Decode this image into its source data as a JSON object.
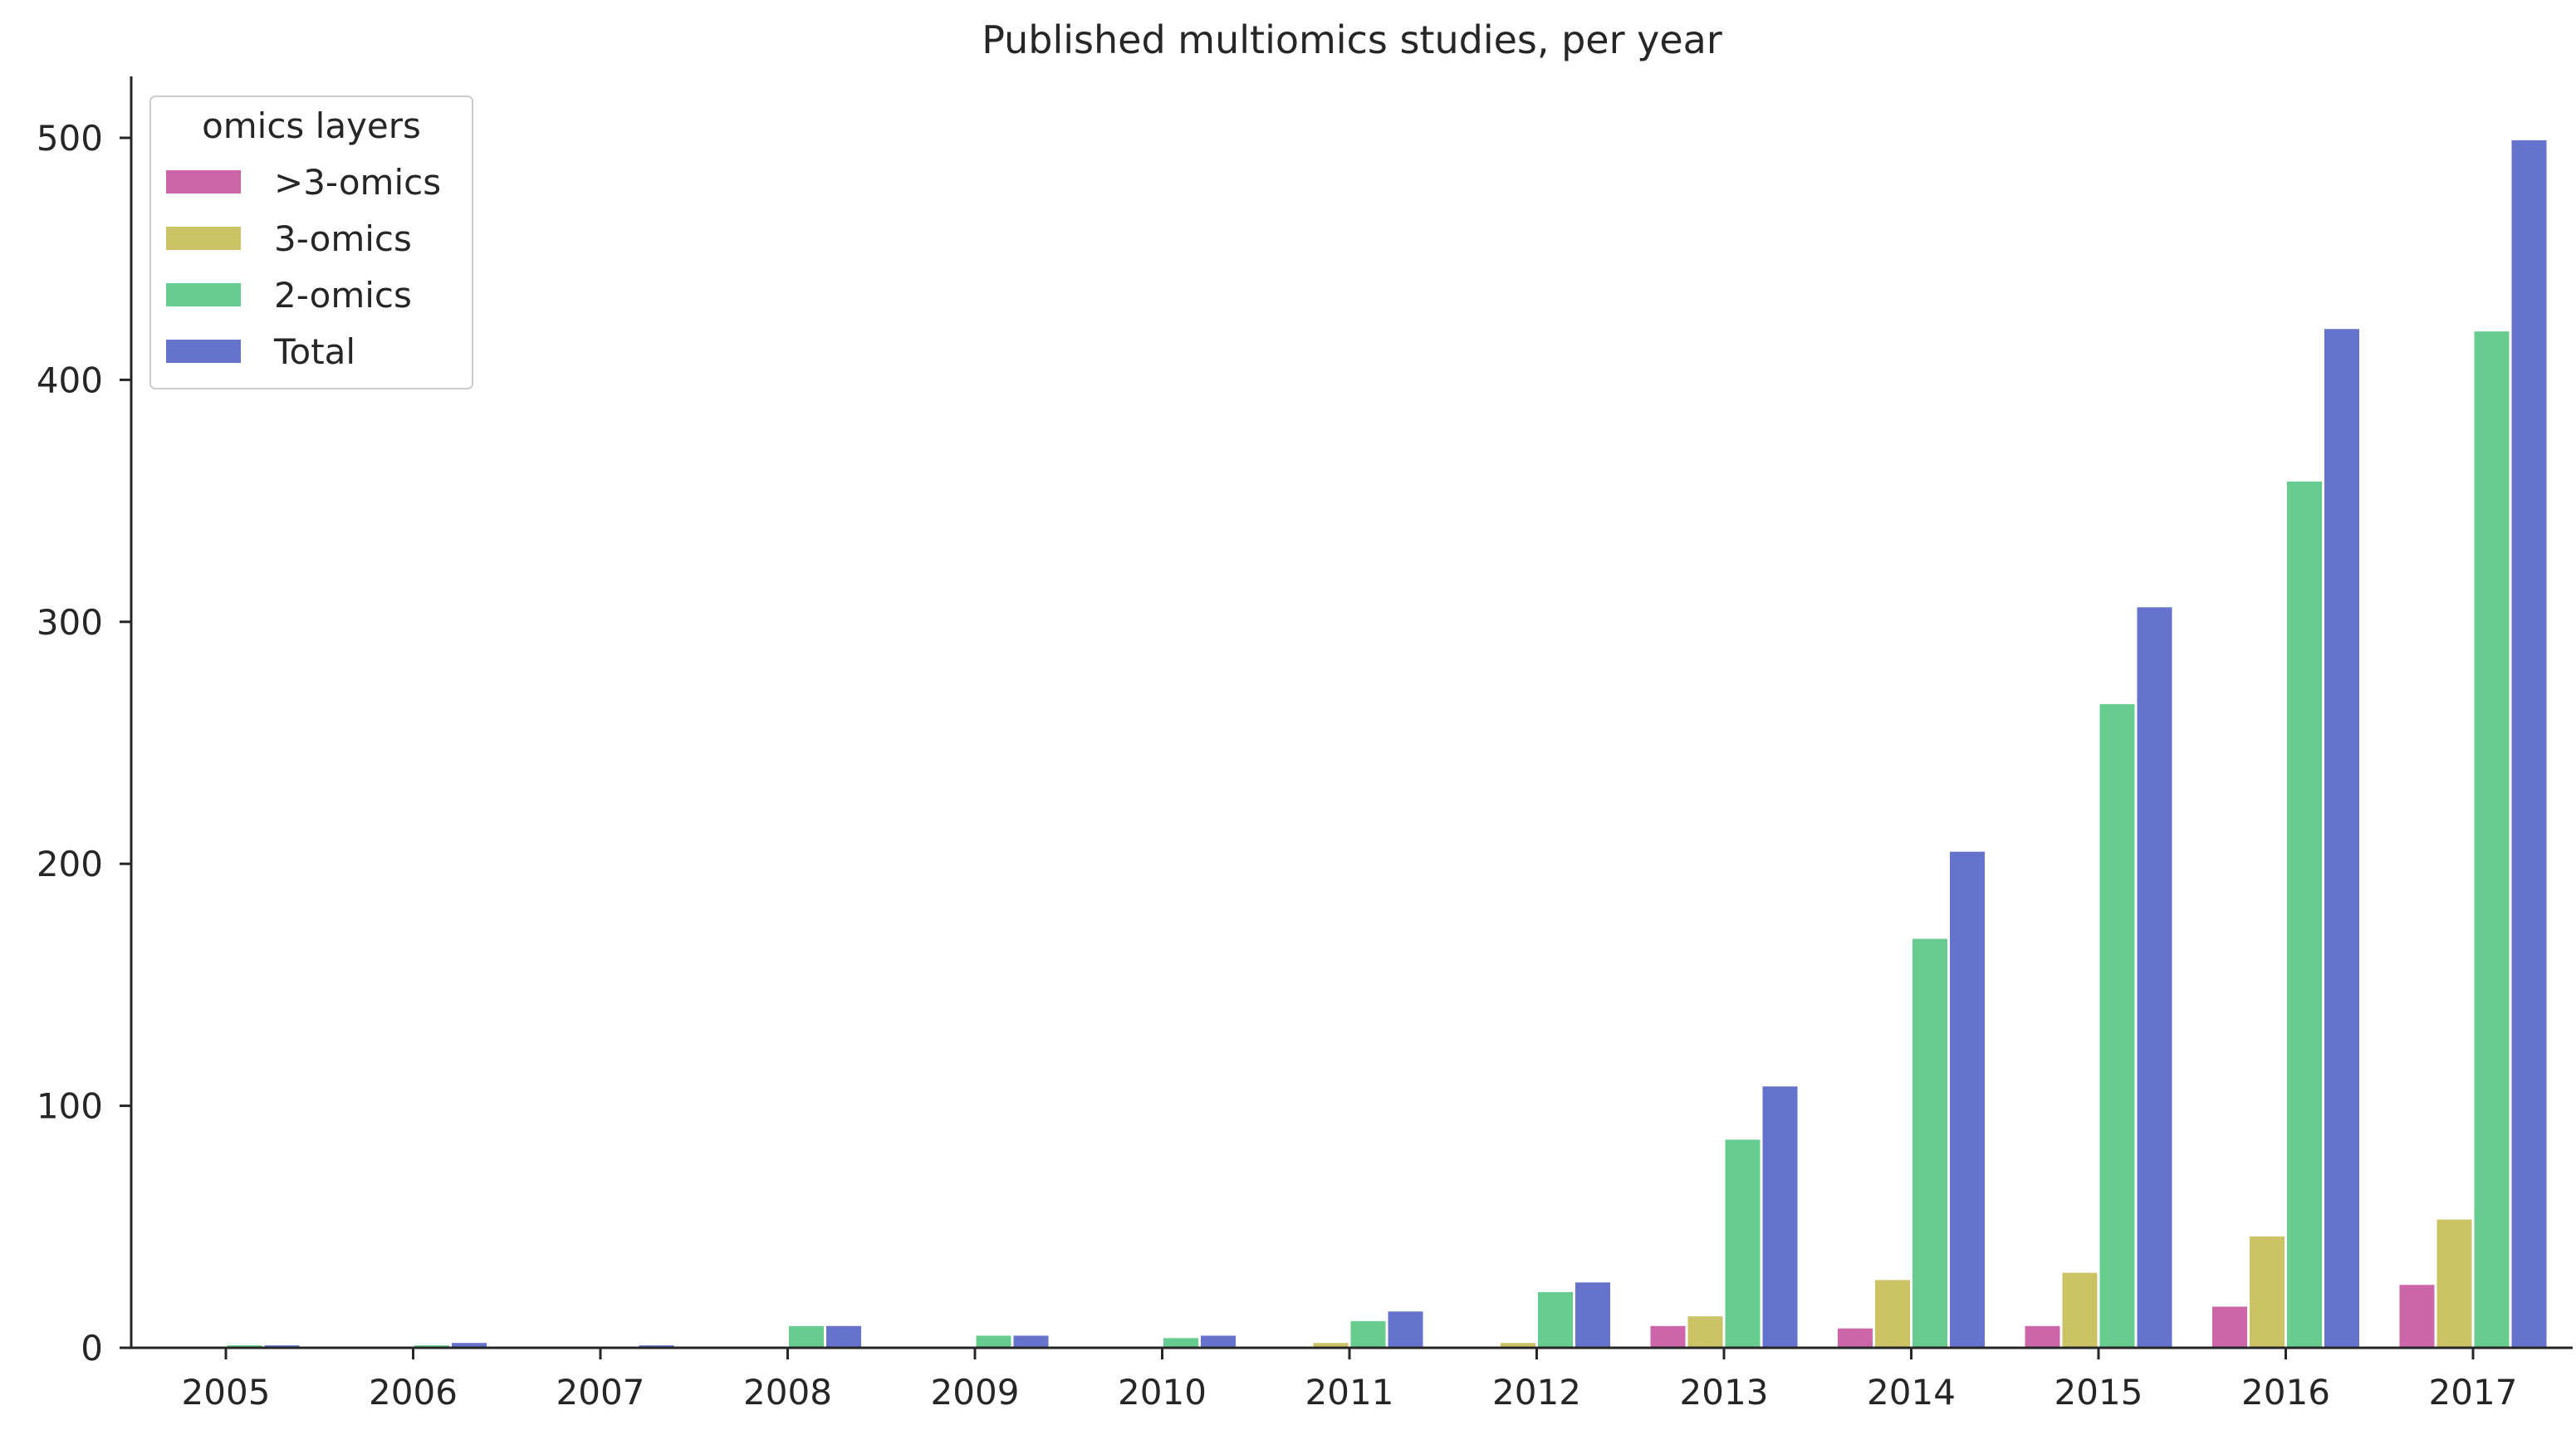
{
  "chart_data": {
    "type": "bar",
    "title": "Published multiomics studies, per year",
    "xlabel": "",
    "ylabel": "",
    "categories": [
      "2005",
      "2006",
      "2007",
      "2008",
      "2009",
      "2010",
      "2011",
      "2012",
      "2013",
      "2014",
      "2015",
      "2016",
      "2017"
    ],
    "ylim": [
      0,
      525
    ],
    "yticks": [
      "0",
      "100",
      "200",
      "300",
      "400",
      "500"
    ],
    "grid": false,
    "legend": {
      "title": "omics layers",
      "placement": "top-left"
    },
    "series": [
      {
        "name": ">3-omics",
        "color": "#cc66a8",
        "values": [
          0,
          0,
          0,
          0,
          0,
          0,
          0,
          0,
          9,
          8,
          9,
          17,
          26
        ]
      },
      {
        "name": "3-omics",
        "color": "#ccc266",
        "values": [
          0,
          0,
          0,
          0,
          0,
          0,
          2,
          2,
          13,
          28,
          31,
          46,
          53
        ]
      },
      {
        "name": "2-omics",
        "color": "#66cc8f",
        "values": [
          1,
          1,
          0,
          9,
          5,
          4,
          11,
          23,
          86,
          169,
          266,
          358,
          420
        ]
      },
      {
        "name": "Total",
        "color": "#6673cc",
        "values": [
          1,
          2,
          1,
          9,
          5,
          5,
          15,
          27,
          108,
          205,
          306,
          421,
          499
        ]
      }
    ]
  }
}
